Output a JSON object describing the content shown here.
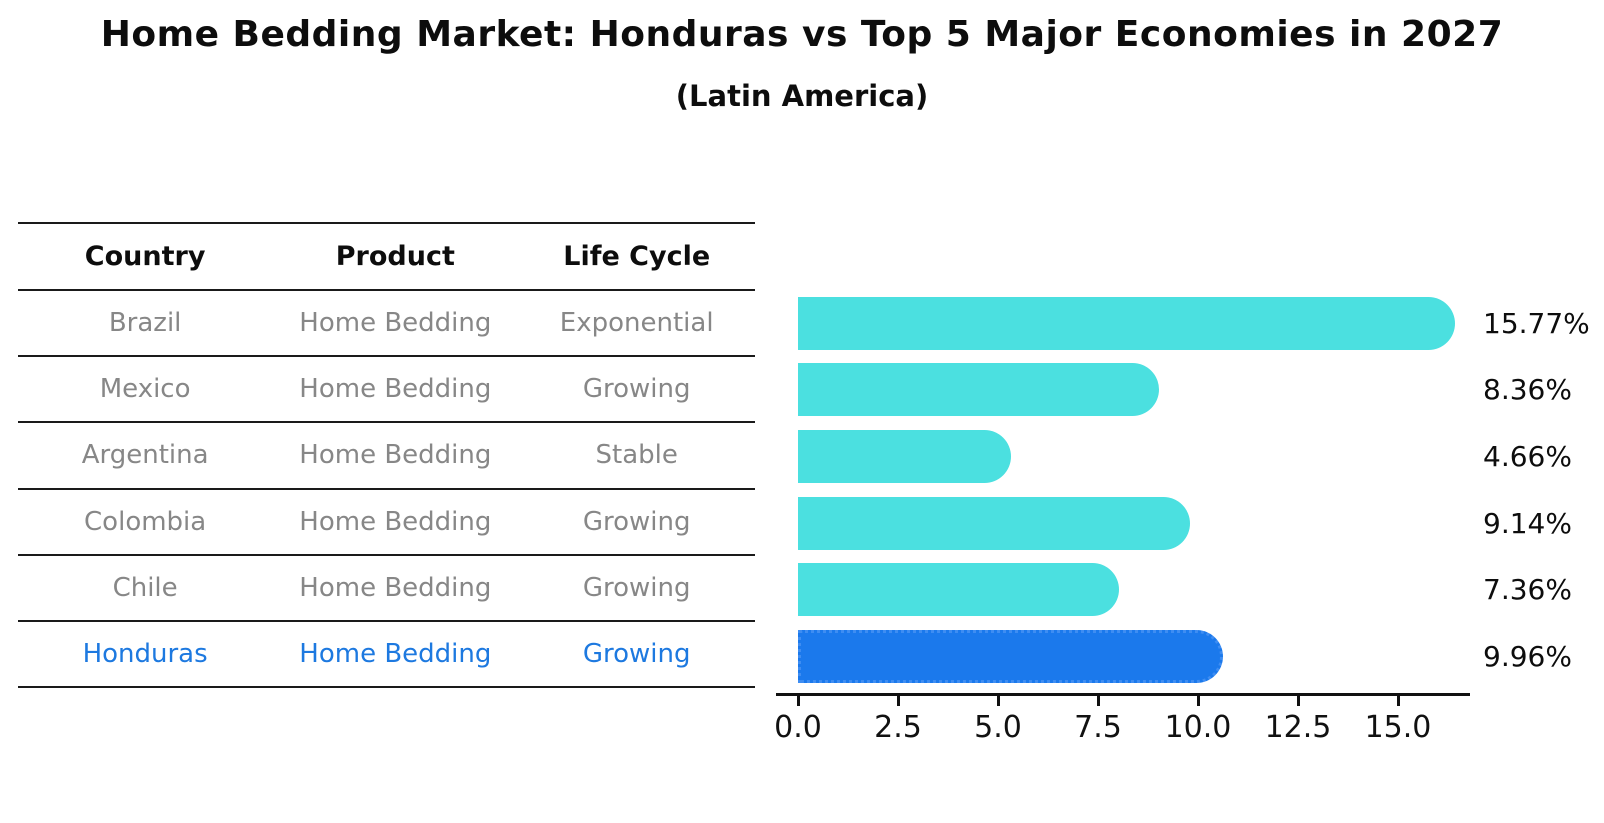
{
  "title": "Home Bedding Market: Honduras vs Top 5 Major Economies in 2027",
  "subtitle": "(Latin America)",
  "colors": {
    "bar_default": "#4be0e0",
    "bar_highlight": "#1b79ec",
    "bar_highlight_edge": "#3e8df2",
    "highlight_text": "#1d79e0",
    "row_text": "#878787",
    "header_text": "#0d0d0d"
  },
  "table": {
    "headers": [
      "Country",
      "Product",
      "Life Cycle"
    ],
    "rows": [
      {
        "country": "Brazil",
        "product": "Home Bedding",
        "life_cycle": "Exponential"
      },
      {
        "country": "Mexico",
        "product": "Home Bedding",
        "life_cycle": "Growing"
      },
      {
        "country": "Argentina",
        "product": "Home Bedding",
        "life_cycle": "Stable"
      },
      {
        "country": "Colombia",
        "product": "Home Bedding",
        "life_cycle": "Growing"
      },
      {
        "country": "Chile",
        "product": "Home Bedding",
        "life_cycle": "Growing"
      },
      {
        "country": "Honduras",
        "product": "Home Bedding",
        "life_cycle": "Growing"
      }
    ]
  },
  "chart_data": {
    "type": "bar",
    "orientation": "horizontal",
    "title": "Home Bedding Market: Honduras vs Top 5 Major Economies in 2027 (Latin America)",
    "categories": [
      "Brazil",
      "Mexico",
      "Argentina",
      "Colombia",
      "Chile",
      "Honduras"
    ],
    "values": [
      15.77,
      8.36,
      4.66,
      9.14,
      7.36,
      9.96
    ],
    "labels": [
      "15.77%",
      "8.36%",
      "4.66%",
      "9.14%",
      "7.36%",
      "9.96%"
    ],
    "highlight_index": 5,
    "highlight_category": "Honduras",
    "xlabel": "",
    "ylabel": "",
    "xlim": [
      0,
      16.8
    ],
    "x_ticks": [
      "0.0",
      "2.5",
      "5.0",
      "7.5",
      "10.0",
      "12.5",
      "15.0"
    ],
    "x_tick_values": [
      0,
      2.5,
      5,
      7.5,
      10,
      12.5,
      15
    ],
    "grid": false,
    "legend": false
  }
}
